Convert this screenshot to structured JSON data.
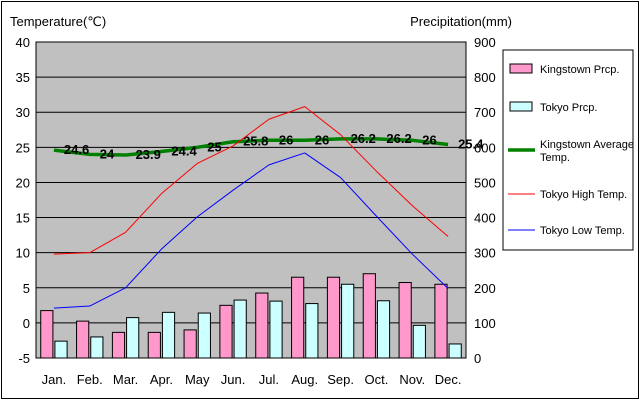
{
  "chart_data": {
    "type": "bar",
    "categories": [
      "Jan.",
      "Feb.",
      "Mar.",
      "Apr.",
      "May",
      "Jun.",
      "Jul.",
      "Aug.",
      "Sep.",
      "Oct.",
      "Nov.",
      "Dec."
    ],
    "y_left": {
      "title": "Temperature(℃)",
      "range": [
        -5,
        40
      ],
      "ticks": [
        -5,
        0,
        5,
        10,
        15,
        20,
        25,
        30,
        35,
        40
      ]
    },
    "y_right": {
      "title": "Precipitation(mm)",
      "range": [
        0,
        900
      ],
      "ticks": [
        0,
        100,
        200,
        300,
        400,
        500,
        600,
        700,
        800,
        900
      ]
    },
    "grid": true,
    "legend_position": "right",
    "series": [
      {
        "name": "Kingstown Prcp.",
        "type": "bar",
        "axis": "right",
        "color": "#ff99cc",
        "values": [
          135,
          105,
          73,
          73,
          80,
          150,
          185,
          230,
          230,
          240,
          215,
          210
        ]
      },
      {
        "name": "Tokyo Prcp.",
        "type": "bar",
        "axis": "right",
        "color": "#ccffff",
        "values": [
          48,
          60,
          115,
          130,
          128,
          165,
          162,
          155,
          210,
          163,
          93,
          40
        ]
      },
      {
        "name": "Kingstown Average Temp.",
        "type": "line",
        "axis": "left",
        "color": "#008000",
        "values": [
          24.6,
          24,
          23.9,
          24.4,
          25,
          25.8,
          26,
          26,
          26.2,
          26.2,
          26,
          25.4
        ],
        "labels": [
          "24.6",
          "24",
          "23.9",
          "24.4",
          "25",
          "25.8",
          "26",
          "26",
          "26.2",
          "26.2",
          "26",
          "25.4"
        ]
      },
      {
        "name": "Tokyo High Temp.",
        "type": "line",
        "axis": "left",
        "color": "#ff0000",
        "values": [
          9.8,
          10,
          12.9,
          18.4,
          22.7,
          25.2,
          29,
          30.8,
          26.8,
          21.6,
          16.7,
          12.3
        ]
      },
      {
        "name": "Tokyo Low Temp.",
        "type": "line",
        "axis": "left",
        "color": "#0000ff",
        "values": [
          2.1,
          2.4,
          5,
          10.5,
          15.1,
          18.9,
          22.5,
          24.2,
          20.7,
          15.2,
          9.8,
          4.9
        ]
      }
    ],
    "legend": [
      {
        "label": "Kingstown Prcp.",
        "kind": "bar",
        "color": "#ff99cc"
      },
      {
        "label": "Tokyo Prcp.",
        "kind": "bar",
        "color": "#ccffff"
      },
      {
        "label": "Kingstown Average Temp.",
        "kind": "line",
        "color": "#008000"
      },
      {
        "label": "Tokyo High Temp.",
        "kind": "line",
        "color": "#ff0000"
      },
      {
        "label": "Tokyo Low Temp.",
        "kind": "line",
        "color": "#0000ff"
      }
    ]
  },
  "colors": {
    "plot_background": "#c0c0c0",
    "legend_background": "#ffffff"
  }
}
